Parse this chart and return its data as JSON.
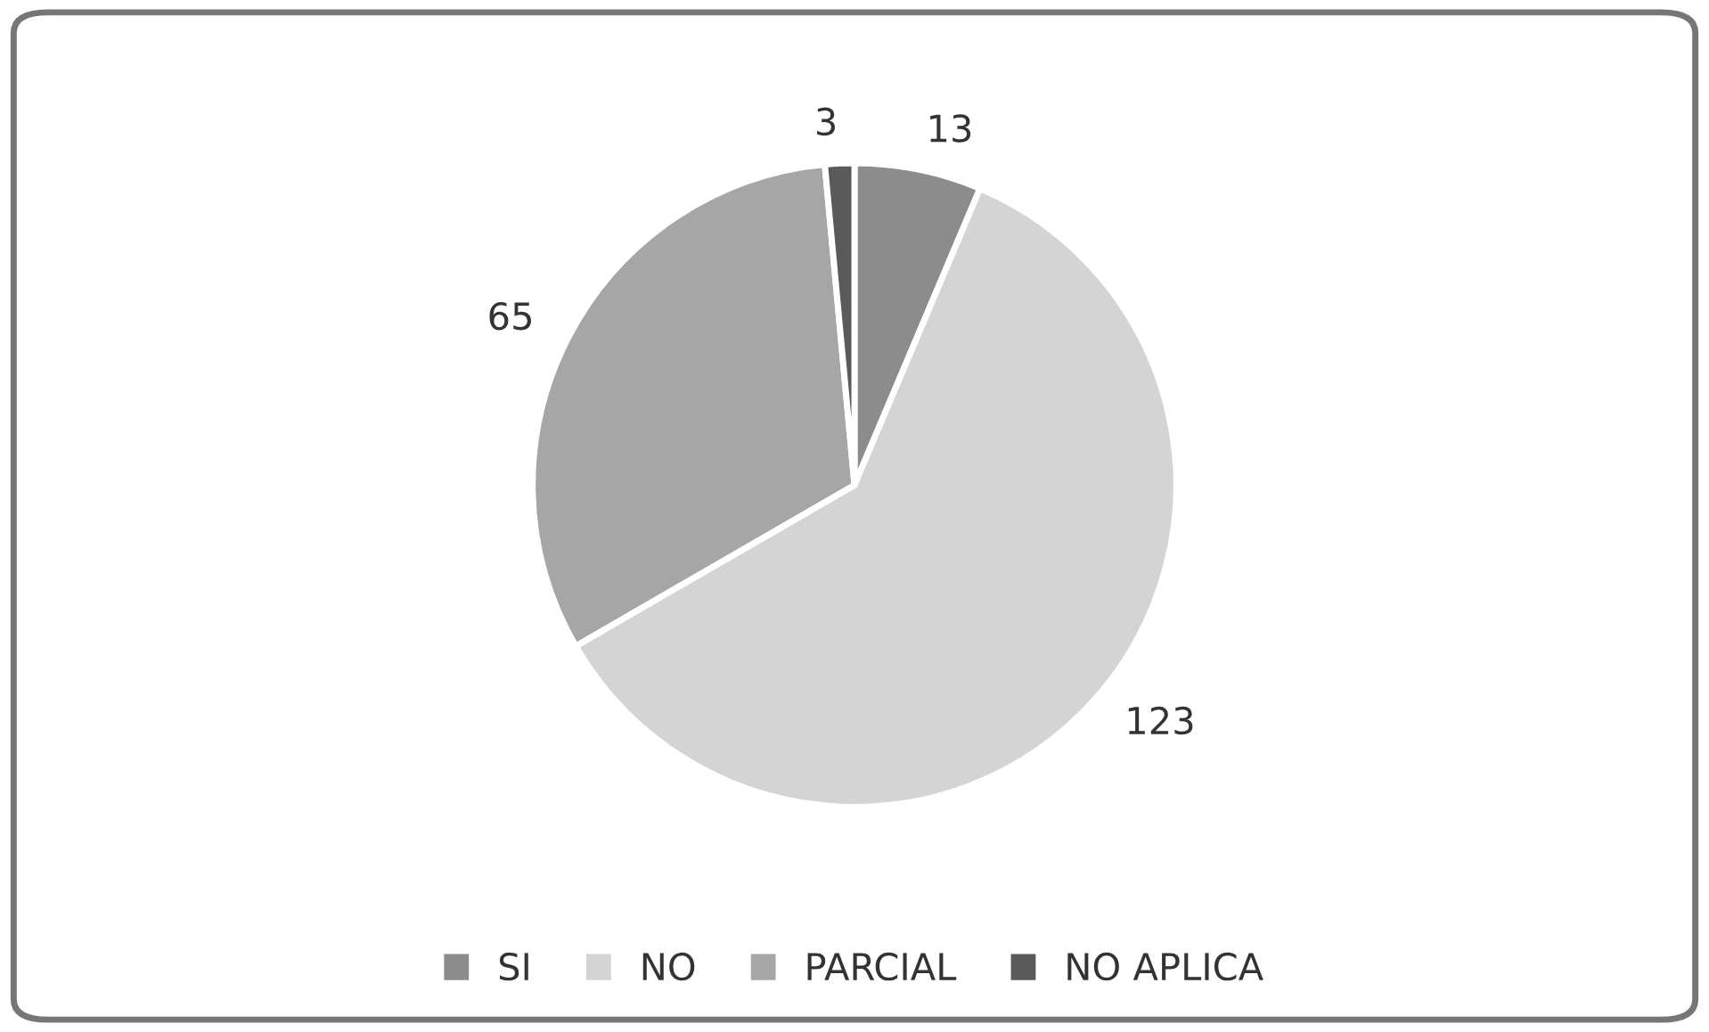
{
  "chart_data": {
    "type": "pie",
    "categories": [
      "SI",
      "NO",
      "PARCIAL",
      "NO APLICA"
    ],
    "values": [
      13,
      123,
      65,
      3
    ],
    "colors": [
      "#8c8c8c",
      "#d4d4d4",
      "#a6a6a6",
      "#5a5a5a"
    ],
    "data_labels": true,
    "legend": "bottom"
  }
}
